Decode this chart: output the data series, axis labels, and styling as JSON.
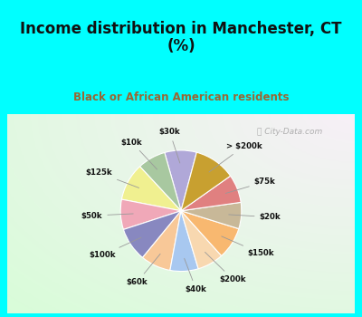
{
  "title": "Income distribution in Manchester, CT\n(%)",
  "subtitle": "Black or African American residents",
  "labels": [
    "$30k",
    "$10k",
    "$125k",
    "$50k",
    "$100k",
    "$60k",
    "$40k",
    "$200k",
    "$150k",
    "$20k",
    "$75k",
    "> $200k"
  ],
  "values": [
    8.5,
    7.5,
    10.0,
    8.0,
    9.0,
    8.0,
    7.5,
    7.0,
    8.5,
    7.0,
    7.5,
    11.0
  ],
  "colors": [
    "#b0a8d8",
    "#a8c8a0",
    "#f0f090",
    "#f0a8b8",
    "#8888c0",
    "#f8c898",
    "#a8c8f0",
    "#f8d8b0",
    "#f8b870",
    "#c8b898",
    "#e08080",
    "#c8a030"
  ],
  "bg_top": "#00ffff",
  "bg_chart": "#c8e8d0",
  "title_color": "#111111",
  "subtitle_color": "#996633",
  "startangle": 75,
  "watermark": "City-Data.com"
}
